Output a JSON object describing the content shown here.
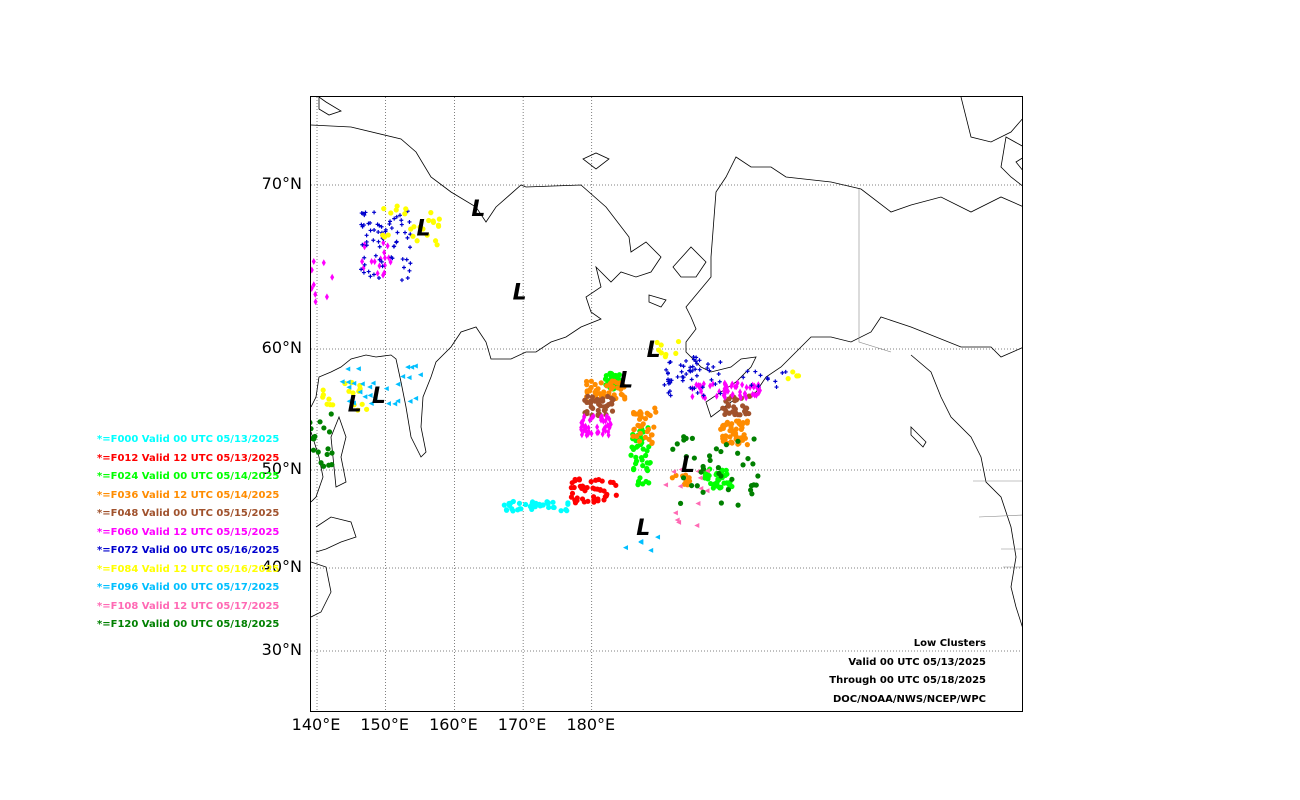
{
  "map": {
    "grid_lat": [
      {
        "label": "70°N",
        "value": 70
      },
      {
        "label": "60°N",
        "value": 60
      },
      {
        "label": "50°N",
        "value": 50
      },
      {
        "label": "40°N",
        "value": 40
      },
      {
        "label": "30°N",
        "value": 30
      }
    ],
    "grid_lon": [
      {
        "label": "140°E",
        "value": 140
      },
      {
        "label": "150°E",
        "value": 150
      },
      {
        "label": "160°E",
        "value": 160
      },
      {
        "label": "170°E",
        "value": 170
      },
      {
        "label": "180°E",
        "value": 180
      }
    ],
    "low_symbol": "L",
    "lows": [
      {
        "lon": 155.5,
        "lat": 67.4
      },
      {
        "lon": 163.5,
        "lat": 68.6
      },
      {
        "lon": 169.5,
        "lat": 63.5
      },
      {
        "lon": 145.5,
        "lat": 55.5
      },
      {
        "lon": 149.0,
        "lat": 56.2
      },
      {
        "lon": 185.0,
        "lat": 57.5
      },
      {
        "lon": 189.0,
        "lat": 60.0
      },
      {
        "lon": 194.0,
        "lat": 50.5
      },
      {
        "lon": 187.5,
        "lat": 44.2
      }
    ]
  },
  "legend": [
    {
      "label": "*=F000 Valid 00 UTC 05/13/2025",
      "color": "#00ffff"
    },
    {
      "label": "*=F012 Valid 12 UTC 05/13/2025",
      "color": "#ff0000"
    },
    {
      "label": "*=F024 Valid 00 UTC 05/14/2025",
      "color": "#00ff00"
    },
    {
      "label": "*=F036 Valid 12 UTC 05/14/2025",
      "color": "#ff8c00"
    },
    {
      "label": "*=F048 Valid 00 UTC 05/15/2025",
      "color": "#a0522d"
    },
    {
      "label": "*=F060 Valid 12 UTC 05/15/2025",
      "color": "#ff00ff"
    },
    {
      "label": "*=F072 Valid 00 UTC 05/16/2025",
      "color": "#0000cd"
    },
    {
      "label": "*=F084 Valid 12 UTC 05/16/2025",
      "color": "#ffff00"
    },
    {
      "label": "*=F096 Valid 00 UTC 05/17/2025",
      "color": "#00bfff"
    },
    {
      "label": "*=F108 Valid 12 UTC 05/17/2025",
      "color": "#ff69b4"
    },
    {
      "label": "*=F120 Valid 00 UTC 05/18/2025",
      "color": "#008000"
    }
  ],
  "info": {
    "title": "Low Clusters",
    "valid": "Valid 00 UTC 05/13/2025",
    "through": "Through 00 UTC 05/18/2025",
    "source": "DOC/NOAA/NWS/NCEP/WPC"
  }
}
